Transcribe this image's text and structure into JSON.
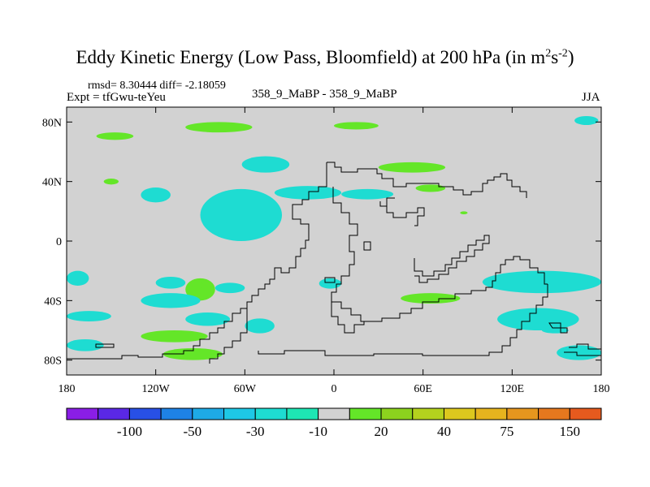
{
  "chart_data": {
    "type": "heatmap",
    "title_main": "Eddy Kinetic Energy (Low Pass, Bloomfield) at 200 hPa (in m",
    "title_unit_m_exp": "2",
    "title_unit_s": "s",
    "title_unit_s_exp": "-2",
    "title_close": ")",
    "stats": "rmsd= 8.30444  diff= -2.18059",
    "expt": "Expt = tfGwu-teYeu",
    "runs": "358_9_MaBP - 358_9_MaBP",
    "season": "JJA",
    "x_axis": {
      "range": [
        -180,
        180
      ],
      "ticks": [
        {
          "v": -180,
          "label": "180"
        },
        {
          "v": -120,
          "label": "120W"
        },
        {
          "v": -60,
          "label": "60W"
        },
        {
          "v": 0,
          "label": "0"
        },
        {
          "v": 60,
          "label": "60E"
        },
        {
          "v": 120,
          "label": "120E"
        },
        {
          "v": 180,
          "label": "180"
        }
      ]
    },
    "y_axis": {
      "range": [
        -90,
        90
      ],
      "ticks": [
        {
          "v": 80,
          "label": "80N"
        },
        {
          "v": 40,
          "label": "40N"
        },
        {
          "v": 0,
          "label": "0"
        },
        {
          "v": -40,
          "label": "40S"
        },
        {
          "v": -80,
          "label": "80S"
        }
      ]
    },
    "colorbar": {
      "colors": [
        "#8a1ee6",
        "#5a28e6",
        "#2850e6",
        "#1e82e6",
        "#1eaae6",
        "#1ec8e6",
        "#1edcd2",
        "#1ee6b4",
        "#d2d2d2",
        "#64e628",
        "#8cd21e",
        "#b4d21e",
        "#dcc81e",
        "#e6b41e",
        "#e6961e",
        "#e6781e",
        "#e65a1e"
      ],
      "labels": [
        {
          "after": 1,
          "label": "-100"
        },
        {
          "after": 3,
          "label": "-50"
        },
        {
          "after": 5,
          "label": "-30"
        },
        {
          "after": 7,
          "label": "-10"
        },
        {
          "after": 9,
          "label": "20"
        },
        {
          "after": 11,
          "label": "40"
        },
        {
          "after": 13,
          "label": "75"
        },
        {
          "after": 15,
          "label": "150"
        }
      ]
    },
    "anomaly_regions": [
      {
        "sign": "pos",
        "lon": [
          -160,
          -135
        ],
        "lat": [
          68,
          73
        ]
      },
      {
        "sign": "pos",
        "lon": [
          -100,
          -55
        ],
        "lat": [
          73,
          80
        ]
      },
      {
        "sign": "pos",
        "lon": [
          0,
          30
        ],
        "lat": [
          75,
          80
        ]
      },
      {
        "sign": "neg",
        "lon": [
          162,
          178
        ],
        "lat": [
          78,
          84
        ]
      },
      {
        "sign": "neg",
        "lon": [
          -62,
          -30
        ],
        "lat": [
          46,
          57
        ]
      },
      {
        "sign": "pos",
        "lon": [
          30,
          75
        ],
        "lat": [
          46,
          53
        ]
      },
      {
        "sign": "pos",
        "lon": [
          -155,
          -145
        ],
        "lat": [
          38,
          42
        ]
      },
      {
        "sign": "neg",
        "lon": [
          -130,
          -110
        ],
        "lat": [
          26,
          36
        ]
      },
      {
        "sign": "neg",
        "lon": [
          -90,
          -35
        ],
        "lat": [
          0,
          35
        ]
      },
      {
        "sign": "neg",
        "lon": [
          -75,
          -50
        ],
        "lat": [
          5,
          14
        ]
      },
      {
        "sign": "neg",
        "lon": [
          -40,
          5
        ],
        "lat": [
          28,
          37
        ]
      },
      {
        "sign": "neg",
        "lon": [
          5,
          40
        ],
        "lat": [
          28,
          35
        ]
      },
      {
        "sign": "pos",
        "lon": [
          55,
          75
        ],
        "lat": [
          33,
          38
        ]
      },
      {
        "sign": "pos",
        "lon": [
          85,
          90
        ],
        "lat": [
          18,
          20
        ]
      },
      {
        "sign": "pos",
        "lon": [
          -100,
          -80
        ],
        "lat": [
          -40,
          -25
        ]
      },
      {
        "sign": "pos",
        "lon": [
          -96,
          -88
        ],
        "lat": [
          -32,
          -27
        ]
      },
      {
        "sign": "neg",
        "lon": [
          -80,
          -60
        ],
        "lat": [
          -35,
          -28
        ]
      },
      {
        "sign": "neg",
        "lon": [
          -180,
          -165
        ],
        "lat": [
          -30,
          -20
        ]
      },
      {
        "sign": "neg",
        "lon": [
          -120,
          -100
        ],
        "lat": [
          -32,
          -24
        ]
      },
      {
        "sign": "neg",
        "lon": [
          -130,
          -90
        ],
        "lat": [
          -45,
          -35
        ]
      },
      {
        "sign": "neg",
        "lon": [
          -180,
          -150
        ],
        "lat": [
          -54,
          -47
        ]
      },
      {
        "sign": "neg",
        "lon": [
          -100,
          -70
        ],
        "lat": [
          -57,
          -48
        ]
      },
      {
        "sign": "neg",
        "lon": [
          -10,
          5
        ],
        "lat": [
          -32,
          -25
        ]
      },
      {
        "sign": "pos",
        "lon": [
          45,
          85
        ],
        "lat": [
          -42,
          -35
        ]
      },
      {
        "sign": "neg",
        "lon": [
          100,
          180
        ],
        "lat": [
          -35,
          -20
        ]
      },
      {
        "sign": "neg",
        "lon": [
          110,
          165
        ],
        "lat": [
          -60,
          -45
        ]
      },
      {
        "sign": "neg",
        "lon": [
          -60,
          -40
        ],
        "lat": [
          -62,
          -52
        ]
      },
      {
        "sign": "pos",
        "lon": [
          -130,
          -85
        ],
        "lat": [
          -68,
          -60
        ]
      },
      {
        "sign": "neg",
        "lon": [
          -180,
          -155
        ],
        "lat": [
          -74,
          -66
        ]
      },
      {
        "sign": "pos",
        "lon": [
          -115,
          -75
        ],
        "lat": [
          -80,
          -72
        ]
      },
      {
        "sign": "neg",
        "lon": [
          150,
          180
        ],
        "lat": [
          -80,
          -70
        ]
      },
      {
        "sign": "neg",
        "lon": [
          140,
          158
        ],
        "lat": [
          -62,
          -58
        ]
      }
    ]
  }
}
